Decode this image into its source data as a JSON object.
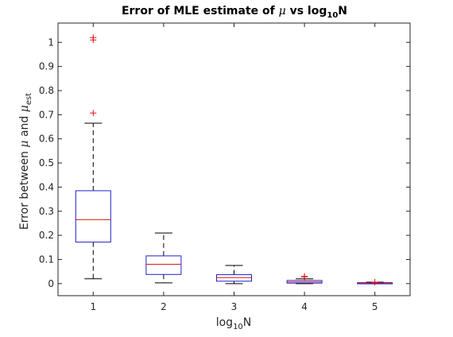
{
  "chart_data": {
    "type": "box",
    "title": {
      "main": "Error of MLE estimate of ",
      "mu": "μ",
      "mid": " vs log",
      "sub": "10",
      "end": "N"
    },
    "xlabel": {
      "main": "log",
      "sub": "10",
      "end": "N"
    },
    "ylabel": {
      "main": "Error between ",
      "mu": "μ",
      "mid": " and ",
      "mu2": "μ",
      "sub": "est"
    },
    "categories": [
      "1",
      "2",
      "3",
      "4",
      "5"
    ],
    "x": [
      1,
      2,
      3,
      4,
      5
    ],
    "xlim": [
      0.5,
      5.5
    ],
    "ylim": [
      -0.05,
      1.08
    ],
    "yticks": [
      0,
      0.1,
      0.2,
      0.3,
      0.4,
      0.5,
      0.6,
      0.7,
      0.8,
      0.9,
      1
    ],
    "ytick_labels": [
      "0",
      "0.1",
      "0.2",
      "0.3",
      "0.4",
      "0.5",
      "0.6",
      "0.7",
      "0.8",
      "0.9",
      "1"
    ],
    "grid": false,
    "colors": {
      "box": "#2020c8",
      "median": "#d81818",
      "whisker": "#000000",
      "outlier": "#e01010",
      "axis": "#262626"
    },
    "boxes": [
      {
        "x": 1,
        "q1": 0.172,
        "median": 0.265,
        "q3": 0.385,
        "whisker_low": 0.02,
        "whisker_high": 0.665,
        "outliers": [
          1.02,
          1.01,
          0.707
        ]
      },
      {
        "x": 2,
        "q1": 0.038,
        "median": 0.08,
        "q3": 0.115,
        "whisker_low": 0.003,
        "whisker_high": 0.21,
        "outliers": []
      },
      {
        "x": 3,
        "q1": 0.01,
        "median": 0.025,
        "q3": 0.037,
        "whisker_low": 0.0,
        "whisker_high": 0.075,
        "outliers": []
      },
      {
        "x": 4,
        "q1": 0.002,
        "median": 0.007,
        "q3": 0.013,
        "whisker_low": 0.0,
        "whisker_high": 0.02,
        "outliers": [
          0.03,
          0.028
        ]
      },
      {
        "x": 5,
        "q1": 0.0005,
        "median": 0.002,
        "q3": 0.004,
        "whisker_low": 0.0,
        "whisker_high": 0.006,
        "outliers": [
          0.006
        ]
      }
    ]
  }
}
